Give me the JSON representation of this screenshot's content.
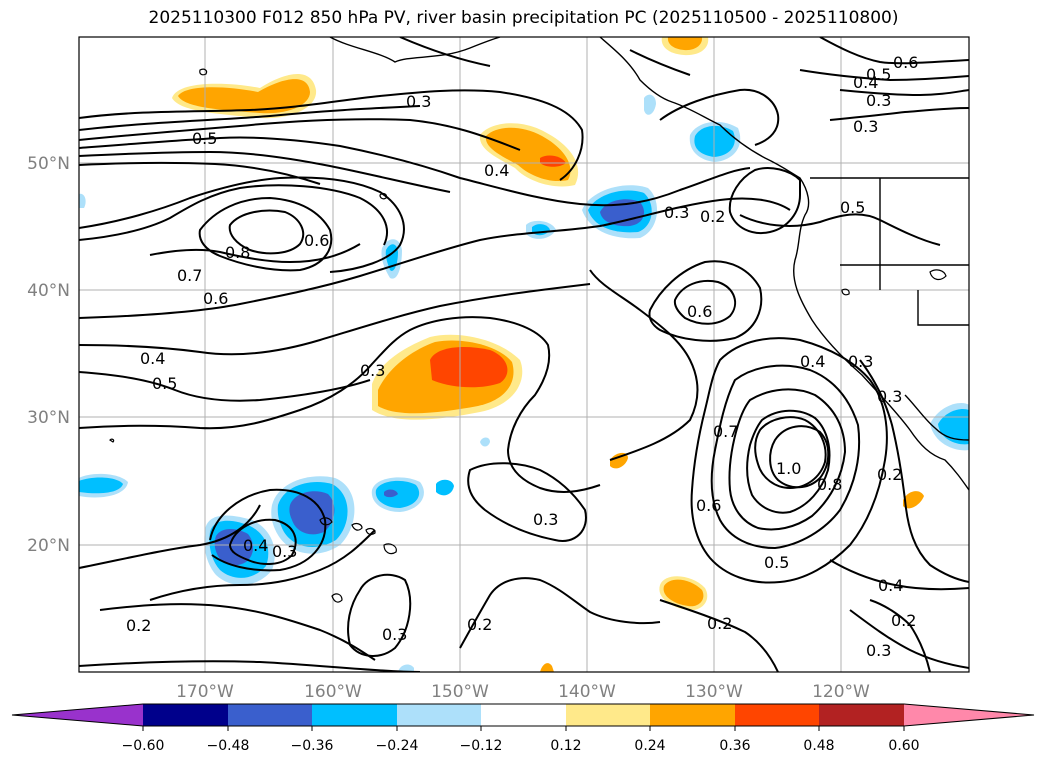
{
  "title": "2025110300 F012 850 hPa PV, river basin precipitation PC (2025110500 - 2025110800)",
  "lon_ticks": [
    "170°W",
    "160°W",
    "150°W",
    "140°W",
    "130°W",
    "120°W"
  ],
  "lat_ticks": [
    "50°N",
    "40°N",
    "30°N",
    "20°N"
  ],
  "contour_labels": [
    "0.6",
    "0.5",
    "0.4",
    "0.3",
    "0.3",
    "0.3",
    "0.5",
    "0.4",
    "0.6",
    "0.8",
    "0.7",
    "0.6",
    "0.4",
    "0.5",
    "0.3",
    "0.3",
    "0.2",
    "0.6",
    "0.5",
    "0.4",
    "0.3",
    "0.7",
    "1.0",
    "0.8",
    "0.6",
    "0.3",
    "0.2",
    "0.5",
    "0.4",
    "0.2",
    "0.2",
    "0.2",
    "0.3",
    "0.3",
    "0.3",
    "0.4",
    "0.2",
    "0.3"
  ],
  "colorbar": {
    "tick_labels": [
      "−0.60",
      "−0.48",
      "−0.36",
      "−0.24",
      "−0.12",
      "0.12",
      "0.24",
      "0.36",
      "0.48",
      "0.60"
    ],
    "colors": [
      "#9932CC",
      "#00008B",
      "#3A5FCD",
      "#00BFFF",
      "#ADE0FA",
      "#FFFFFF",
      "#FFE98A",
      "#FFA500",
      "#FF4500",
      "#B22222",
      "#FF88AA"
    ]
  },
  "fill_colors": {
    "neg1": "#ADE0FA",
    "neg2": "#00BFFF",
    "neg3": "#3A5FCD",
    "pos1": "#FFE98A",
    "pos2": "#FFA500",
    "pos3": "#FF4500"
  }
}
